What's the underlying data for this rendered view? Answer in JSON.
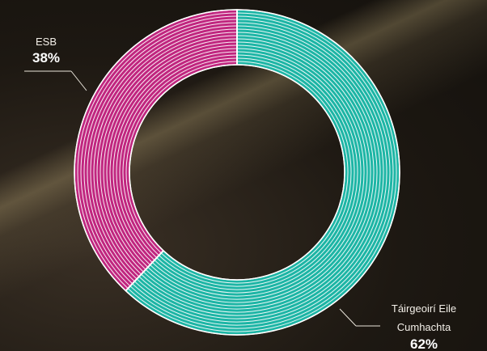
{
  "chart_data": {
    "type": "pie",
    "donut": true,
    "title": "",
    "categories": [
      "Táirgeoirí Eile Cumhachta",
      "ESB"
    ],
    "values": [
      62,
      38
    ],
    "labels": {
      "esb": {
        "name": "ESB",
        "value": "38%"
      },
      "others": {
        "name_line1": "Táirgeoirí Eile",
        "name_line2": "Cumhachta",
        "value": "62%"
      }
    },
    "colors": [
      "#1db5a5",
      "#c0267f"
    ],
    "start_angle_deg": 0,
    "direction": "clockwise"
  }
}
